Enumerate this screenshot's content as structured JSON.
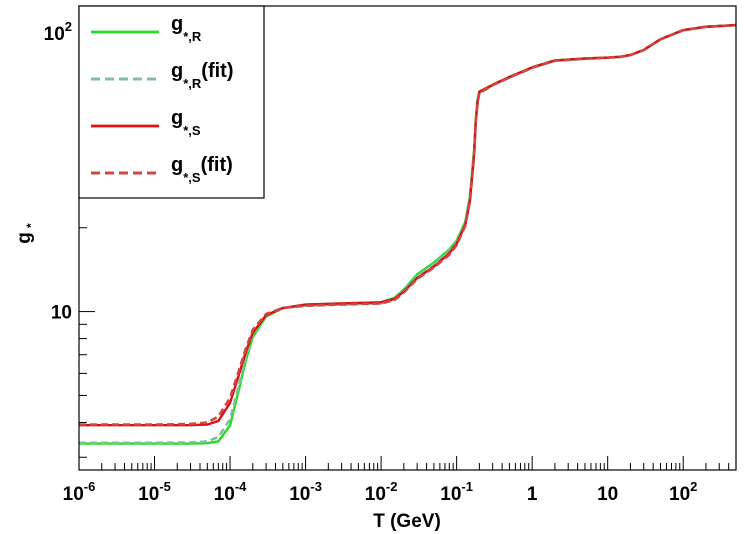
{
  "chart_data": {
    "type": "line",
    "xlabel": "T (GeV)",
    "ylabel": "g",
    "ylabel_sub": "*",
    "x_scale": "log",
    "y_scale": "log",
    "xlim": [
      1e-06,
      500
    ],
    "ylim": [
      2.7,
      125
    ],
    "grid": false,
    "legend_position": "top-left",
    "x_tick_labels": [
      {
        "value": 1e-06,
        "base": "10",
        "exp": "-6"
      },
      {
        "value": 1e-05,
        "base": "10",
        "exp": "-5"
      },
      {
        "value": 0.0001,
        "base": "10",
        "exp": "-4"
      },
      {
        "value": 0.001,
        "base": "10",
        "exp": "-3"
      },
      {
        "value": 0.01,
        "base": "10",
        "exp": "-2"
      },
      {
        "value": 0.1,
        "base": "10",
        "exp": "-1"
      },
      {
        "value": 1,
        "base": "1",
        "exp": ""
      },
      {
        "value": 10,
        "base": "10",
        "exp": ""
      },
      {
        "value": 100,
        "base": "10",
        "exp": "2"
      }
    ],
    "y_tick_labels": [
      {
        "value": 10,
        "base": "10",
        "exp": ""
      },
      {
        "value": 100,
        "base": "10",
        "exp": "2"
      }
    ],
    "series": [
      {
        "name": "g*,R",
        "legend": {
          "main": "g",
          "sub": "*,R",
          "suffix": ""
        },
        "color": "#22dd22",
        "dash": "solid",
        "x": [
          1e-06,
          1e-05,
          3e-05,
          5e-05,
          7e-05,
          0.0001,
          0.00013,
          0.00016,
          0.0002,
          0.0003,
          0.0005,
          0.001,
          0.003,
          0.01,
          0.015,
          0.02,
          0.03,
          0.05,
          0.08,
          0.1,
          0.13,
          0.15,
          0.17,
          0.18,
          0.19,
          0.2,
          0.25,
          0.3,
          0.5,
          1,
          2,
          5,
          10,
          15,
          20,
          30,
          50,
          100,
          200,
          500
        ],
        "y": [
          3.36,
          3.36,
          3.36,
          3.37,
          3.42,
          3.9,
          5.2,
          6.6,
          8.1,
          9.6,
          10.3,
          10.6,
          10.7,
          10.8,
          11.2,
          12.0,
          13.6,
          15.0,
          16.7,
          18.0,
          21.0,
          26.0,
          38.0,
          50.0,
          58.0,
          61.7,
          63.5,
          65.2,
          69.5,
          75.3,
          79.7,
          81.0,
          81.6,
          82.2,
          83.4,
          87.0,
          95.0,
          102.5,
          105.3,
          106.75
        ]
      },
      {
        "name": "g*,R (fit)",
        "legend": {
          "main": "g",
          "sub": "*,R",
          "suffix": " (fit)"
        },
        "color": "#7fbf9f",
        "dash": "dashed",
        "x": [
          1e-06,
          1e-05,
          3e-05,
          5e-05,
          7e-05,
          0.0001,
          0.00013,
          0.00016,
          0.0002,
          0.0003,
          0.0005,
          0.001,
          0.003,
          0.01,
          0.015,
          0.02,
          0.03,
          0.05,
          0.08,
          0.1,
          0.13,
          0.15,
          0.17,
          0.18,
          0.19,
          0.2,
          0.25,
          0.3,
          0.5,
          1,
          2,
          5,
          10,
          15,
          20,
          30,
          50,
          100,
          200,
          500
        ],
        "y": [
          3.38,
          3.38,
          3.39,
          3.42,
          3.55,
          4.1,
          5.4,
          6.8,
          8.3,
          9.7,
          10.3,
          10.5,
          10.6,
          10.7,
          11.1,
          11.9,
          13.4,
          14.8,
          16.5,
          17.8,
          20.8,
          25.5,
          37.0,
          49.0,
          57.0,
          61.0,
          63.0,
          65.0,
          69.2,
          75.0,
          79.5,
          80.8,
          81.5,
          82.1,
          83.3,
          86.8,
          94.8,
          102.3,
          105.2,
          106.7
        ]
      },
      {
        "name": "g*,S",
        "legend": {
          "main": "g",
          "sub": "*,S",
          "suffix": ""
        },
        "color": "#dd1111",
        "dash": "solid",
        "x": [
          1e-06,
          1e-05,
          3e-05,
          5e-05,
          7e-05,
          0.0001,
          0.00013,
          0.00016,
          0.0002,
          0.0003,
          0.0005,
          0.001,
          0.003,
          0.01,
          0.015,
          0.02,
          0.03,
          0.05,
          0.08,
          0.1,
          0.13,
          0.15,
          0.17,
          0.18,
          0.19,
          0.2,
          0.25,
          0.3,
          0.5,
          1,
          2,
          5,
          10,
          15,
          20,
          30,
          50,
          100,
          200,
          500
        ],
        "y": [
          3.91,
          3.91,
          3.91,
          3.93,
          4.05,
          4.7,
          5.9,
          7.1,
          8.4,
          9.7,
          10.3,
          10.6,
          10.7,
          10.8,
          11.1,
          11.8,
          13.2,
          14.5,
          16.2,
          17.5,
          20.5,
          25.0,
          36.5,
          49.0,
          57.0,
          61.5,
          63.5,
          65.2,
          69.5,
          75.3,
          79.7,
          81.0,
          81.6,
          82.2,
          83.4,
          87.0,
          95.0,
          102.5,
          105.3,
          106.75
        ]
      },
      {
        "name": "g*,S (fit)",
        "legend": {
          "main": "g",
          "sub": "*,S",
          "suffix": " (fit)"
        },
        "color": "#d04545",
        "dash": "dashed",
        "x": [
          1e-06,
          1e-05,
          3e-05,
          5e-05,
          7e-05,
          0.0001,
          0.00013,
          0.00016,
          0.0002,
          0.0003,
          0.0005,
          0.001,
          0.003,
          0.01,
          0.015,
          0.02,
          0.03,
          0.05,
          0.08,
          0.1,
          0.13,
          0.15,
          0.17,
          0.18,
          0.19,
          0.2,
          0.25,
          0.3,
          0.5,
          1,
          2,
          5,
          10,
          15,
          20,
          30,
          50,
          100,
          200,
          500
        ],
        "y": [
          3.93,
          3.93,
          3.95,
          4.0,
          4.2,
          4.9,
          6.1,
          7.3,
          8.6,
          9.8,
          10.3,
          10.5,
          10.6,
          10.7,
          11.0,
          11.7,
          13.1,
          14.4,
          16.0,
          17.3,
          20.3,
          24.8,
          36.0,
          48.5,
          56.5,
          61.0,
          63.0,
          65.0,
          69.2,
          75.0,
          79.5,
          80.8,
          81.5,
          82.1,
          83.3,
          86.8,
          94.8,
          102.3,
          105.2,
          106.7
        ]
      }
    ]
  }
}
